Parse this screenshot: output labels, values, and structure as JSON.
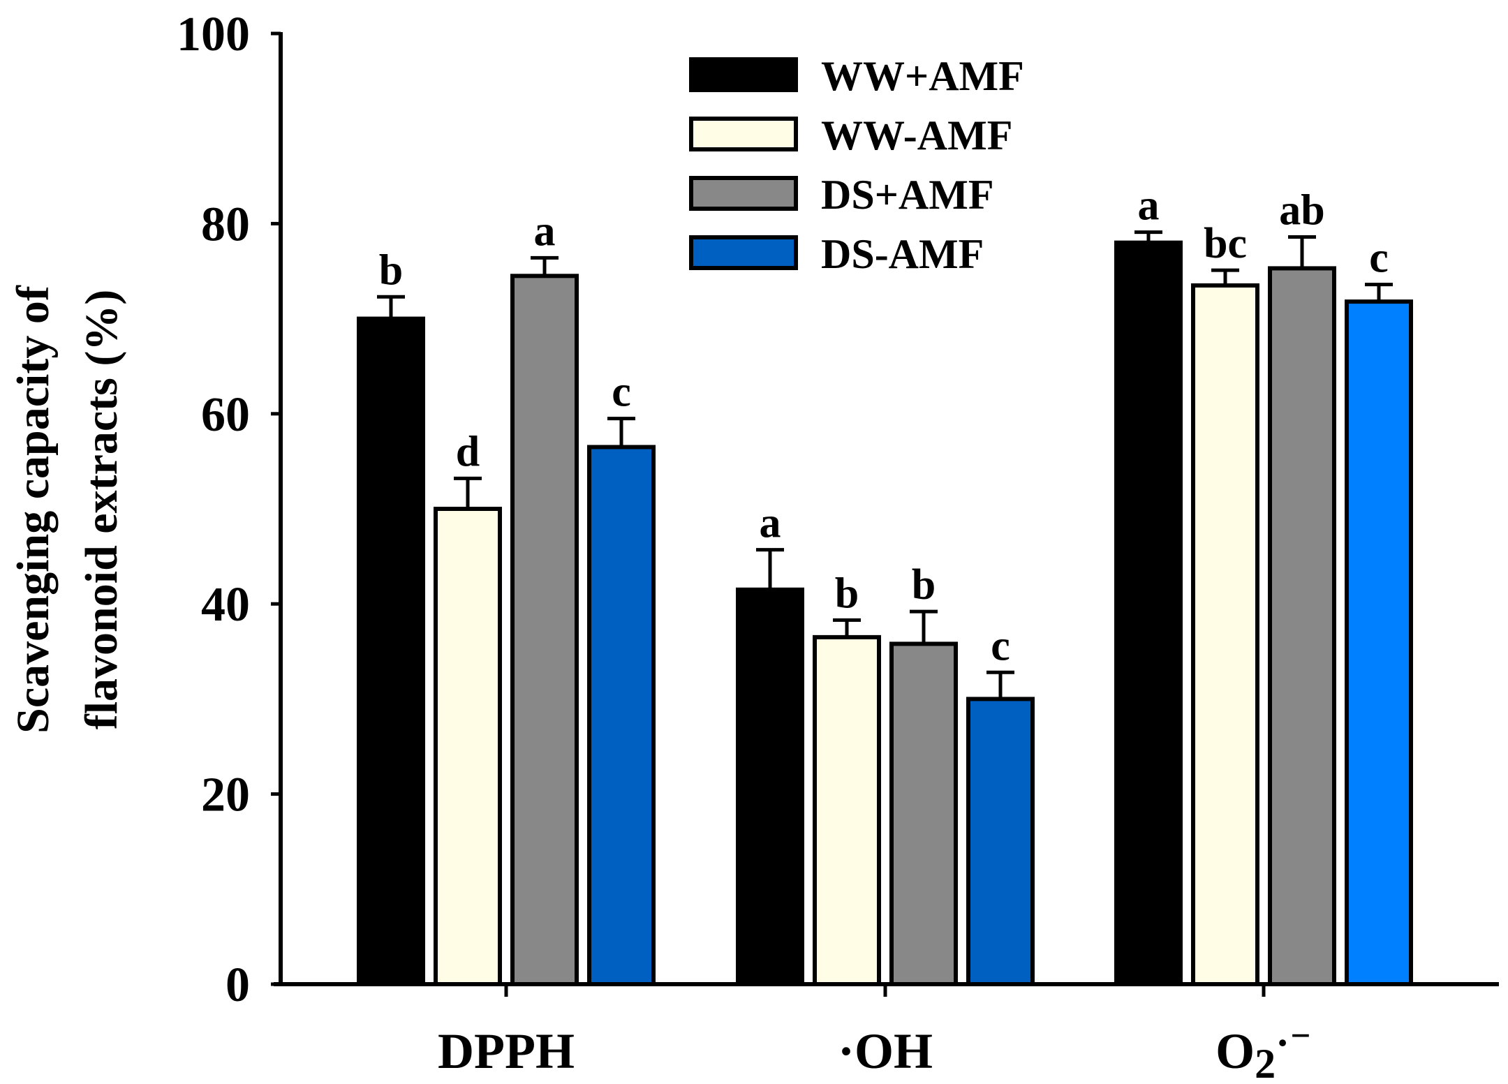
{
  "chart_data": {
    "type": "bar",
    "title": "",
    "xlabel": "",
    "ylabel_lines": [
      "Scavenging capacity of",
      "flavonoid extracts (%)"
    ],
    "ylim": [
      0,
      100
    ],
    "yticks": [
      "0",
      "20",
      "40",
      "60",
      "80",
      "100"
    ],
    "categories": [
      {
        "main": "DPPH",
        "sub": "",
        "sup": ""
      },
      {
        "main": "·OH",
        "sub": "",
        "sup": ""
      },
      {
        "main": "O",
        "sub": "2",
        "sup": "·⁻"
      }
    ],
    "series": [
      {
        "name": "WW+AMF",
        "colors": [
          "#000000",
          "#000000",
          "#000000"
        ],
        "values": [
          70,
          41.5,
          78
        ],
        "errors": [
          2.3,
          4.2,
          1.1
        ],
        "letters": [
          "b",
          "a",
          "a"
        ]
      },
      {
        "name": "WW-AMF",
        "colors": [
          "#fffde6",
          "#fffde6",
          "#fffde6"
        ],
        "values": [
          50,
          36.5,
          73.5
        ],
        "errors": [
          3.2,
          1.8,
          1.6
        ],
        "letters": [
          "d",
          "b",
          "bc"
        ]
      },
      {
        "name": "DS+AMF",
        "colors": [
          "#888888",
          "#888888",
          "#888888"
        ],
        "values": [
          74.5,
          35.8,
          75.3
        ],
        "errors": [
          1.9,
          3.4,
          3.3
        ],
        "letters": [
          "a",
          "b",
          "ab"
        ]
      },
      {
        "name": "DS-AMF",
        "colors": [
          "#0060c2",
          "#0060c2",
          "#0080ff"
        ],
        "values": [
          56.5,
          30,
          71.8
        ],
        "errors": [
          3,
          2.8,
          1.8
        ],
        "letters": [
          "c",
          "c",
          "c"
        ]
      }
    ],
    "legend": {
      "position": "top-center",
      "entries": [
        {
          "name": "WW+AMF",
          "color": "#000000"
        },
        {
          "name": "WW-AMF",
          "color": "#fffde6"
        },
        {
          "name": "DS+AMF",
          "color": "#888888"
        },
        {
          "name": "DS-AMF",
          "color": "#0060c2"
        }
      ]
    }
  }
}
